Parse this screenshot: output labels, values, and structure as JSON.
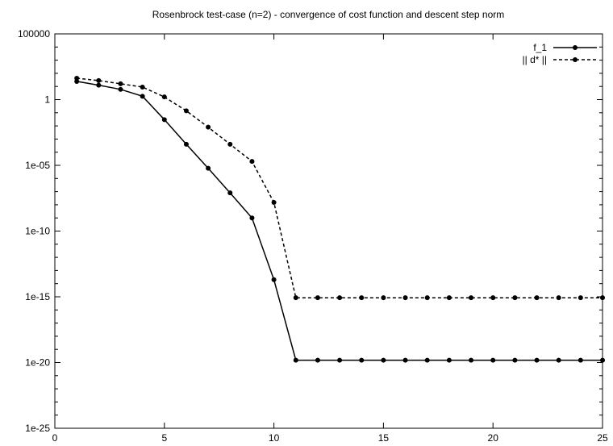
{
  "chart_data": {
    "type": "line",
    "title": "Rosenbrock test-case (n=2) - convergence of cost function and descent step norm",
    "xlabel": "",
    "ylabel": "",
    "xlim": [
      0,
      25
    ],
    "ylim": [
      1e-25,
      100000
    ],
    "y_scale": "log",
    "x_ticks": [
      0,
      5,
      10,
      15,
      20,
      25
    ],
    "x_tick_labels": [
      "0",
      "5",
      "10",
      "15",
      "20",
      "25"
    ],
    "y_ticks": [
      1e-25,
      1e-20,
      1e-15,
      1e-10,
      1e-05,
      1,
      100000
    ],
    "y_tick_labels": [
      "1e-25",
      "1e-20",
      "1e-15",
      "1e-10",
      "1e-05",
      "1",
      "100000"
    ],
    "grid": false,
    "legend_position": "top-right",
    "x": [
      1,
      2,
      3,
      4,
      5,
      6,
      7,
      8,
      9,
      10,
      11,
      12,
      13,
      14,
      15,
      16,
      17,
      18,
      19,
      20,
      21,
      22,
      23,
      24,
      25
    ],
    "series": [
      {
        "name": "f_1",
        "line_style": "solid",
        "color": "#000000",
        "values": [
          24.2,
          12.5,
          6.0,
          1.8,
          0.03,
          0.0004,
          6e-06,
          8e-08,
          1e-09,
          2e-14,
          1.5e-20,
          1.5e-20,
          1.5e-20,
          1.5e-20,
          1.5e-20,
          1.5e-20,
          1.5e-20,
          1.5e-20,
          1.5e-20,
          1.5e-20,
          1.5e-20,
          1.5e-20,
          1.5e-20,
          1.5e-20,
          1.5e-20
        ]
      },
      {
        "name": "|| d* ||",
        "line_style": "dashed",
        "color": "#000000",
        "values": [
          42,
          28,
          16,
          9,
          1.6,
          0.14,
          0.008,
          0.0004,
          2e-05,
          1.5e-08,
          8.5e-16,
          8.5e-16,
          8.5e-16,
          8.5e-16,
          8.5e-16,
          8.5e-16,
          8.5e-16,
          8.5e-16,
          8.5e-16,
          8.5e-16,
          8.5e-16,
          8.5e-16,
          8.5e-16,
          8.5e-16,
          8.5e-16
        ]
      }
    ]
  }
}
